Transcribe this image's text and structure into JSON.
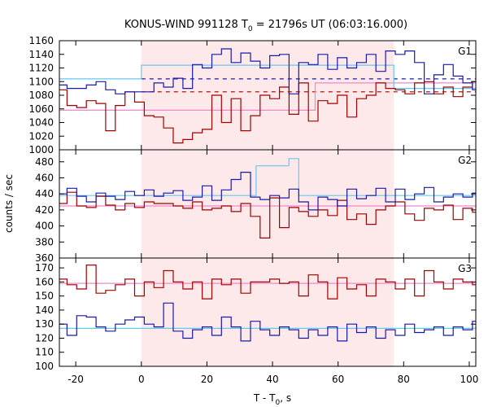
{
  "chart_data": {
    "type": "line",
    "title": "KONUS-WIND 991128 T0 = 21796s UT (06:03:16.000)",
    "title_parts": {
      "pre": "KONUS-WIND 991128 T",
      "sub": "0",
      "post": " = 21796s UT (06:03:16.000)"
    },
    "xlabel": "T - T0, s",
    "xlabel_parts": {
      "pre": "T - T",
      "sub": "0",
      "post": ", s"
    },
    "ylabel": "counts / sec",
    "xlim": [
      -25,
      102
    ],
    "xticks": [
      -20,
      0,
      20,
      40,
      60,
      80,
      100
    ],
    "shaded_interval": [
      0,
      77
    ],
    "colors": {
      "shade": "#fde9ea",
      "dark_red": "#a00000",
      "blue": "#1a1aa8",
      "cyan": "#66c8f0",
      "pink": "#ee88cc"
    },
    "panels": [
      {
        "name": "G1",
        "ylim": [
          1000,
          1160
        ],
        "yticks": [
          1000,
          1020,
          1040,
          1060,
          1080,
          1100,
          1120,
          1140,
          1160
        ],
        "bin_start": -25.6,
        "bin_width": 2.944,
        "series": [
          {
            "color": "#1a1aa8",
            "values": [
              1095,
              1090,
              1090,
              1095,
              1100,
              1088,
              1082,
              1085,
              1085,
              1085,
              1098,
              1092,
              1105,
              1090,
              1125,
              1120,
              1140,
              1148,
              1128,
              1142,
              1130,
              1120,
              1138,
              1140,
              1082,
              1128,
              1125,
              1140,
              1118,
              1135,
              1120,
              1128,
              1140,
              1115,
              1145,
              1140,
              1145,
              1128,
              1082,
              1110,
              1125,
              1108,
              1098,
              1088,
              1092,
              1088
            ]
          },
          {
            "color": "#a00000",
            "values": [
              1088,
              1065,
              1062,
              1072,
              1068,
              1028,
              1065,
              1085,
              1070,
              1050,
              1048,
              1032,
              1010,
              1015,
              1025,
              1030,
              1080,
              1040,
              1075,
              1028,
              1050,
              1080,
              1075,
              1092,
              1052,
              1098,
              1042,
              1072,
              1068,
              1080,
              1048,
              1075,
              1080,
              1098,
              1090,
              1088,
              1082,
              1098,
              1100,
              1082,
              1092,
              1078,
              1092,
              1100,
              1090,
              1108
            ]
          },
          {
            "color": "#66c8f0",
            "style": "solid",
            "steps": [
              [
                -25.6,
                1104
              ],
              [
                0,
                1124
              ],
              [
                77,
                1090
              ],
              [
                102,
                1090
              ]
            ]
          },
          {
            "color": "#ee88cc",
            "style": "solid",
            "steps": [
              [
                -25.6,
                1058
              ],
              [
                53,
                1098
              ],
              [
                102,
                1098
              ]
            ]
          },
          {
            "color": "#1a1aa8",
            "style": "dashed",
            "level": 1104,
            "x_range": [
              0,
              102
            ]
          },
          {
            "color": "#a00000",
            "style": "dashed",
            "level": 1085,
            "x_range": [
              0,
              102
            ]
          }
        ]
      },
      {
        "name": "G2",
        "ylim": [
          360,
          495
        ],
        "yticks": [
          360,
          380,
          400,
          420,
          440,
          460,
          480
        ],
        "bin_start": -25.6,
        "bin_width": 2.944,
        "series": [
          {
            "color": "#1a1aa8",
            "values": [
              440,
              447,
              437,
              430,
              441,
              437,
              433,
              443,
              438,
              445,
              437,
              441,
              444,
              432,
              436,
              450,
              432,
              445,
              458,
              467,
              436,
              433,
              438,
              435,
              446,
              430,
              420,
              436,
              433,
              425,
              446,
              434,
              438,
              447,
              430,
              446,
              433,
              440,
              448,
              430,
              436,
              440,
              436,
              441,
              437,
              443
            ]
          },
          {
            "color": "#a00000",
            "values": [
              428,
              442,
              425,
              423,
              437,
              426,
              420,
              428,
              423,
              430,
              428,
              428,
              425,
              422,
              430,
              420,
              422,
              425,
              418,
              428,
              412,
              385,
              435,
              398,
              423,
              418,
              412,
              420,
              413,
              432,
              408,
              415,
              402,
              420,
              425,
              430,
              415,
              407,
              422,
              420,
              426,
              408,
              422,
              417,
              428,
              410
            ]
          },
          {
            "color": "#66c8f0",
            "style": "solid",
            "steps": [
              [
                -25.6,
                438
              ],
              [
                35,
                475
              ],
              [
                45,
                484
              ],
              [
                48,
                438
              ],
              [
                102,
                438
              ]
            ]
          },
          {
            "color": "#ee88cc",
            "style": "solid",
            "steps": [
              [
                -25.6,
                425
              ],
              [
                102,
                425
              ]
            ]
          }
        ]
      },
      {
        "name": "G3",
        "ylim": [
          100,
          177
        ],
        "yticks": [
          100,
          110,
          120,
          130,
          140,
          150,
          160,
          170
        ],
        "bin_start": -25.6,
        "bin_width": 2.944,
        "series": [
          {
            "color": "#1a1aa8",
            "values": [
              130,
              122,
              136,
              135,
              128,
              125,
              130,
              133,
              135,
              130,
              128,
              145,
              125,
              120,
              126,
              128,
              122,
              135,
              128,
              118,
              132,
              126,
              122,
              128,
              126,
              120,
              126,
              122,
              128,
              118,
              130,
              124,
              128,
              120,
              126,
              122,
              130,
              124,
              126,
              128,
              122,
              128,
              126,
              132,
              136,
              135
            ]
          },
          {
            "color": "#a00000",
            "values": [
              162,
              158,
              155,
              172,
              152,
              154,
              158,
              162,
              150,
              160,
              156,
              168,
              160,
              155,
              160,
              148,
              162,
              158,
              162,
              152,
              160,
              160,
              162,
              159,
              160,
              150,
              165,
              160,
              148,
              163,
              155,
              158,
              150,
              162,
              160,
              155,
              162,
              150,
              168,
              160,
              155,
              162,
              160,
              158,
              160,
              170
            ]
          },
          {
            "color": "#66c8f0",
            "style": "solid",
            "steps": [
              [
                -25.6,
                127
              ],
              [
                102,
                127
              ]
            ]
          },
          {
            "color": "#ee88cc",
            "style": "solid",
            "steps": [
              [
                -25.6,
                159
              ],
              [
                102,
                159
              ]
            ]
          }
        ]
      }
    ]
  }
}
